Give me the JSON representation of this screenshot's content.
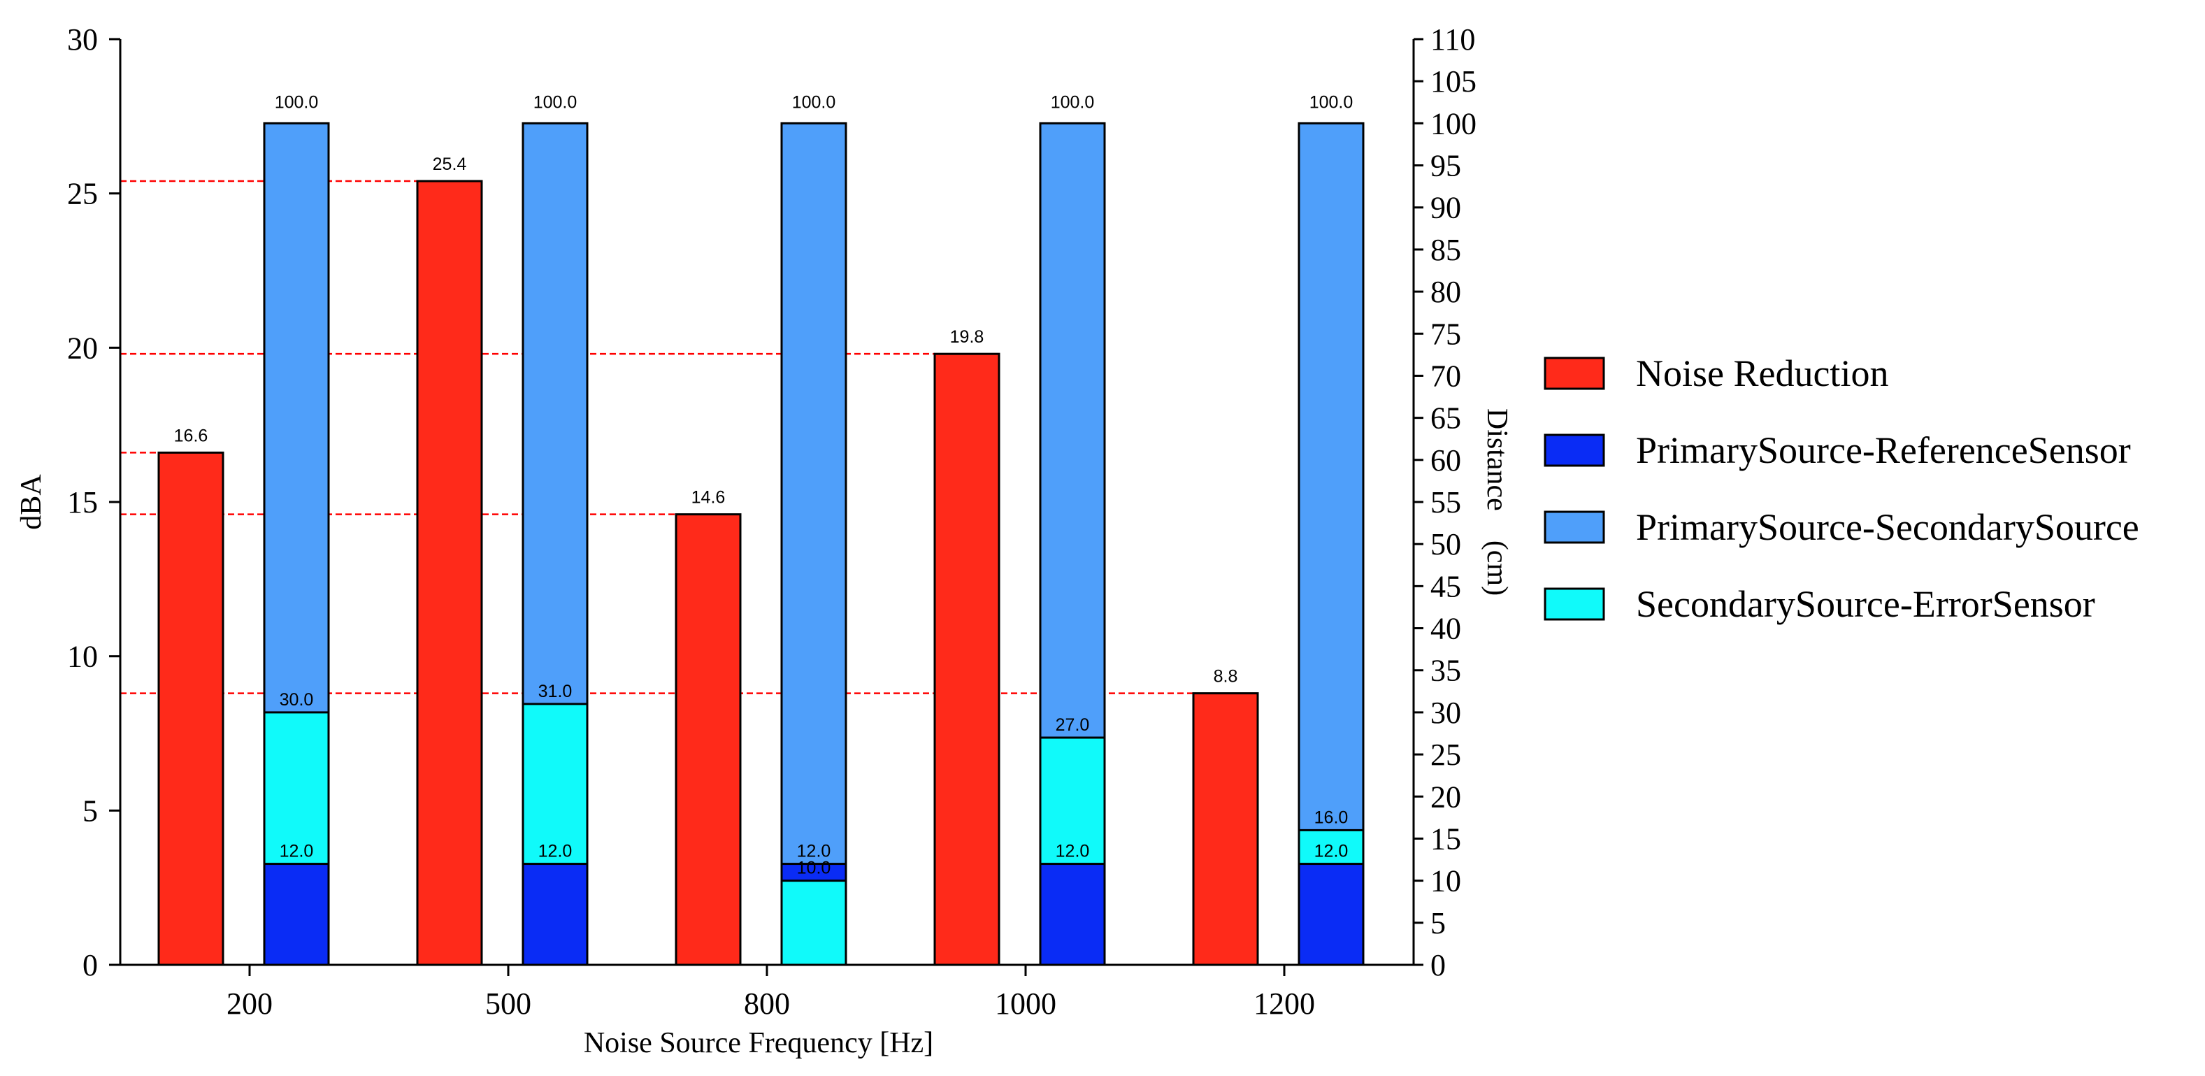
{
  "chart_data": {
    "type": "bar",
    "xlabel": "Noise Source Frequency [Hz]",
    "ylabel": "dBA",
    "y2label": "Distance　(cm)",
    "categories": [
      "200",
      "500",
      "800",
      "1000",
      "1200"
    ],
    "ylim": [
      0,
      30
    ],
    "yticks": [
      0,
      5,
      10,
      15,
      20,
      25,
      30
    ],
    "y2lim": [
      0,
      110
    ],
    "y2ticks": [
      0,
      5,
      10,
      15,
      20,
      25,
      30,
      35,
      40,
      45,
      50,
      55,
      60,
      65,
      70,
      75,
      80,
      85,
      90,
      95,
      100,
      105,
      110
    ],
    "series": [
      {
        "name": "Noise Reduction",
        "axis": "left",
        "color": "#ff2a1a",
        "values": [
          16.6,
          25.4,
          14.6,
          19.8,
          8.8
        ]
      },
      {
        "name": "PrimarySource-ReferenceSensor",
        "axis": "right",
        "color": "#0a2cf5",
        "values": [
          12.0,
          12.0,
          12.0,
          12.0,
          12.0
        ]
      },
      {
        "name": "PrimarySource-SecondarySource",
        "axis": "right",
        "color": "#4f9ffa",
        "values": [
          100.0,
          100.0,
          100.0,
          100.0,
          100.0
        ]
      },
      {
        "name": "SecondarySource-ErrorSensor",
        "axis": "right",
        "color": "#10fafa",
        "values": [
          30.0,
          31.0,
          10.0,
          27.0,
          16.0
        ]
      }
    ],
    "data_labels": {
      "noise_reduction": [
        "16.6",
        "25.4",
        "14.6",
        "19.8",
        "8.8"
      ],
      "reference_sensor": [
        "12.0",
        "12.0",
        "12.0",
        "12.0",
        "12.0"
      ],
      "secondary_source": [
        "100.0",
        "100.0",
        "100.0",
        "100.0",
        "100.0"
      ],
      "error_sensor": [
        "30.0",
        "31.0",
        "10.0",
        "27.0",
        "16.0"
      ]
    },
    "reference_lines": {
      "style": "dashed",
      "color": "#ff0000",
      "values": [
        16.6,
        25.4,
        14.6,
        19.8,
        8.8
      ]
    },
    "legend_position": "right"
  }
}
